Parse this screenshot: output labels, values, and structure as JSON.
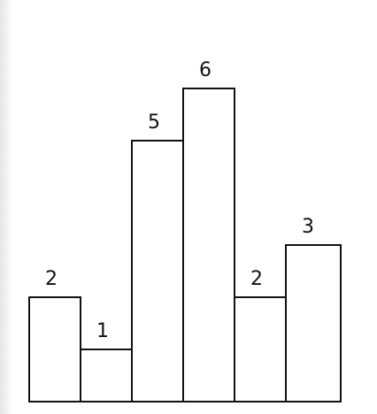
{
  "chart_data": {
    "type": "bar",
    "categories": [
      "",
      "",
      "",
      "",
      "",
      ""
    ],
    "values": [
      2,
      1,
      5,
      6,
      2,
      3
    ],
    "data_labels": [
      "2",
      "1",
      "5",
      "6",
      "2",
      "3"
    ],
    "title": "",
    "xlabel": "",
    "ylabel": "",
    "ylim": [
      0,
      6
    ],
    "grid": false,
    "legend": "none",
    "bar_fill": "#ffffff",
    "bar_stroke": "#111111"
  }
}
